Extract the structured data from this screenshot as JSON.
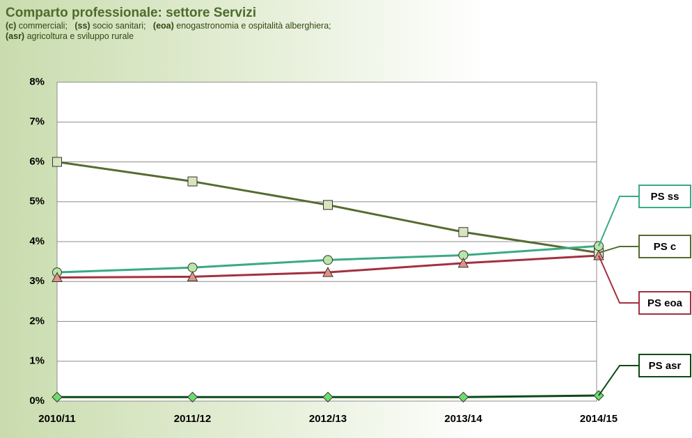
{
  "chart_data": {
    "type": "line",
    "title": "Comparto professionale:  settore Servizi",
    "notes": [
      {
        "code": "(c)",
        "text": "commerciali;"
      },
      {
        "code": "(ss)",
        "text": "socio sanitari;"
      },
      {
        "code": "(eoa)",
        "text": "enogastronomia e ospitalità alberghiera;"
      },
      {
        "code": "(asr)",
        "text": "agricoltura e sviluppo rurale"
      }
    ],
    "categories": [
      "2010/11",
      "2011/12",
      "2012/13",
      "2013/14",
      "2014/15"
    ],
    "series": [
      {
        "name": "PS c",
        "color": "#556b2f",
        "marker": "square",
        "marker_color": "#d8e4bc",
        "values": [
          6.0,
          5.51,
          4.92,
          4.24,
          3.72
        ]
      },
      {
        "name": "PS ss",
        "color": "#3aaa84",
        "marker": "circle",
        "marker_color": "#b8e6a6",
        "values": [
          3.23,
          3.35,
          3.54,
          3.66,
          3.89
        ]
      },
      {
        "name": "PS eoa",
        "color": "#a33040",
        "marker": "triangle",
        "marker_color": "#e09484",
        "values": [
          3.1,
          3.12,
          3.23,
          3.46,
          3.65
        ]
      },
      {
        "name": "PS asr",
        "color": "#0d4a14",
        "marker": "diamond",
        "marker_color": "#6fdc6a",
        "values": [
          0.1,
          0.1,
          0.1,
          0.1,
          0.14
        ]
      }
    ],
    "ylim": [
      0,
      8
    ],
    "yticks": [
      {
        "value": 0,
        "label": "0%"
      },
      {
        "value": 1,
        "label": "1%"
      },
      {
        "value": 2,
        "label": "2%"
      },
      {
        "value": 3,
        "label": "3%"
      },
      {
        "value": 4,
        "label": "4%"
      },
      {
        "value": 5,
        "label": "5%"
      },
      {
        "value": 6,
        "label": "6%"
      },
      {
        "value": 7,
        "label": "7%"
      },
      {
        "value": 8,
        "label": "8%"
      }
    ],
    "grid": true
  }
}
